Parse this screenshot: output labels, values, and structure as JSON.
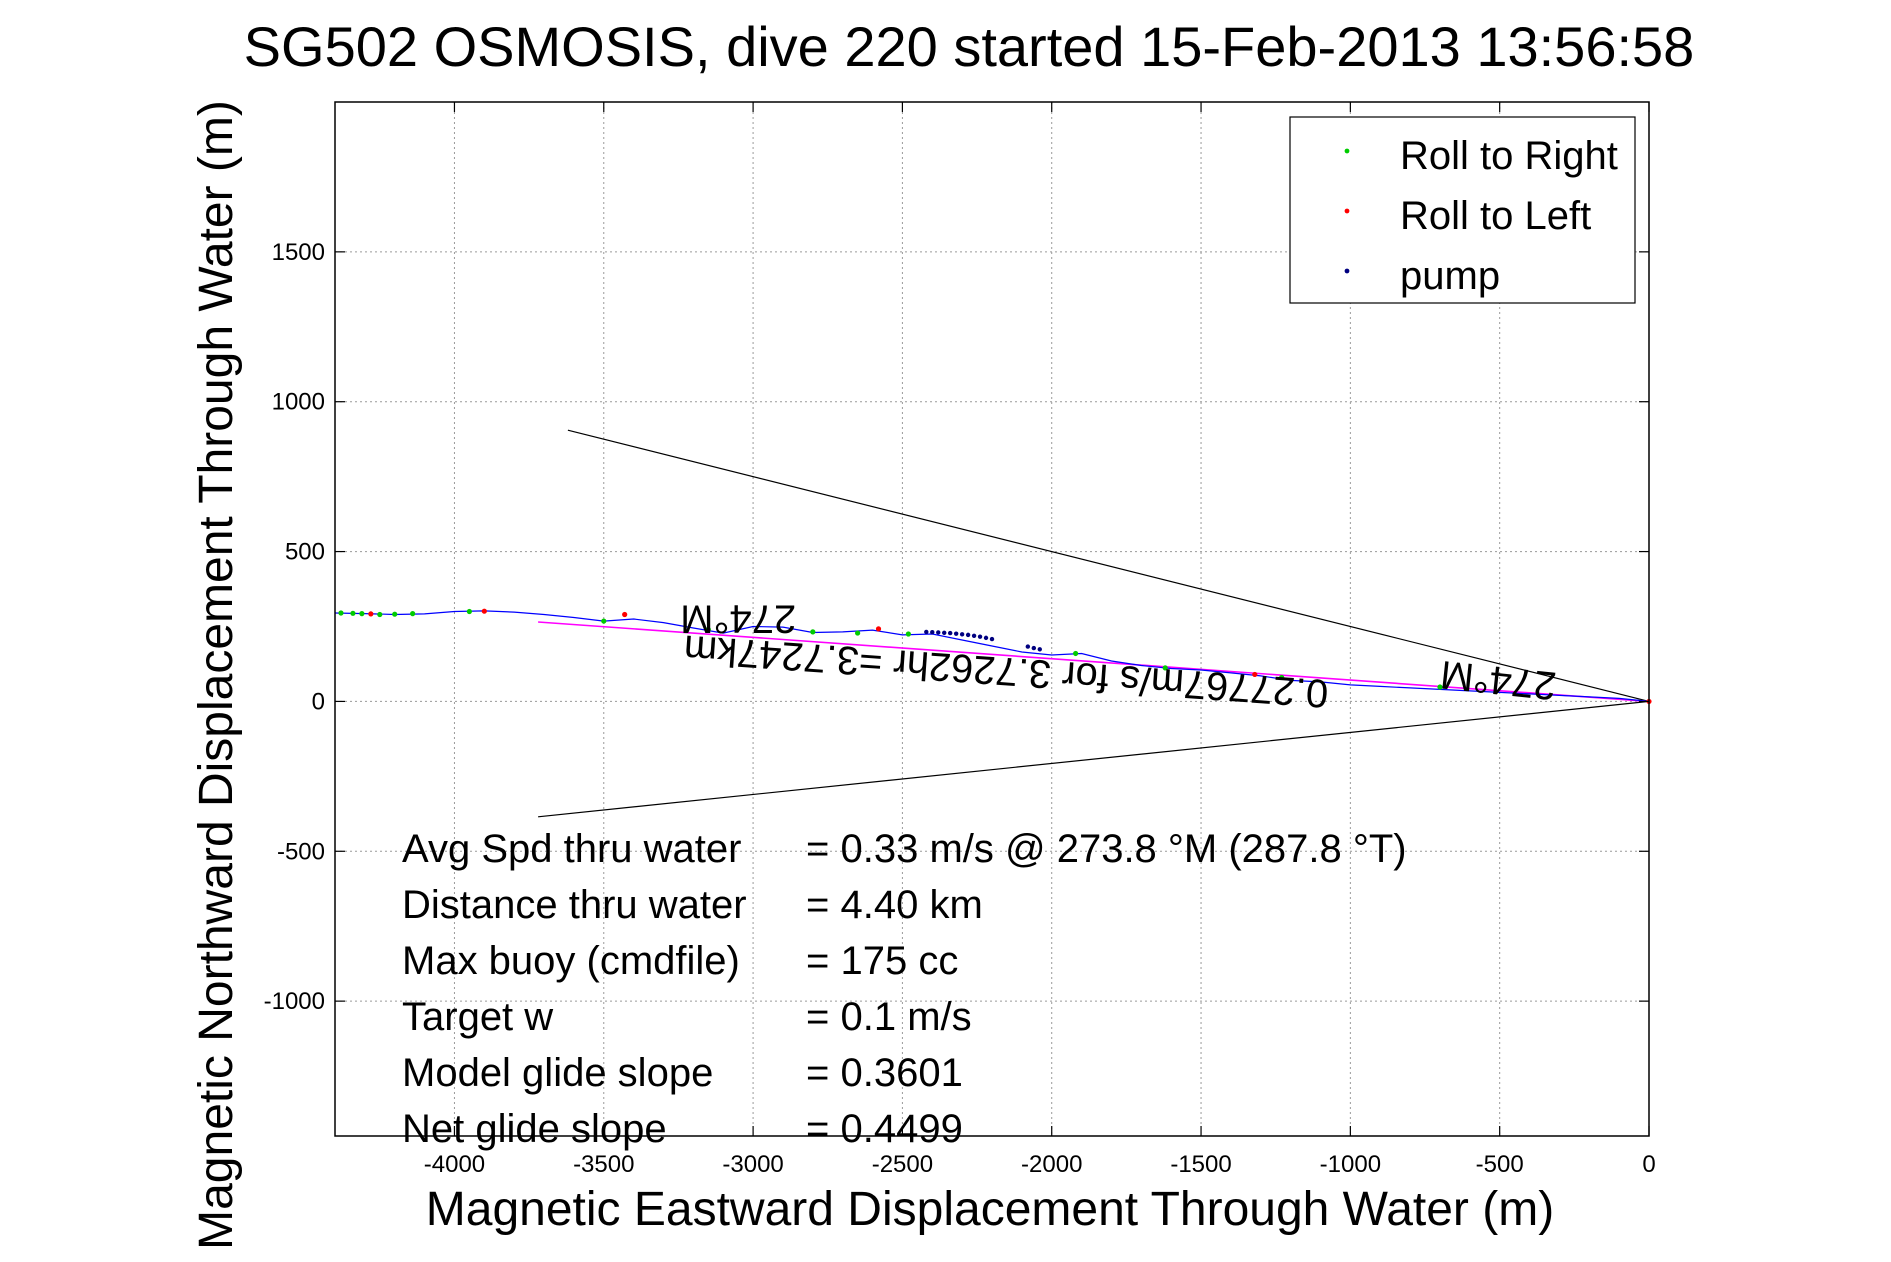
{
  "chart_data": {
    "type": "scatter",
    "title": "SG502 OSMOSIS, dive 220 started 15-Feb-2013 13:56:58",
    "xlabel": "Magnetic Eastward Displacement Through Water (m)",
    "ylabel": "Magnetic Northward Displacement Through Water (m)",
    "xlim": [
      -4400,
      0
    ],
    "ylim": [
      -1450,
      2000
    ],
    "xticks": [
      -4000,
      -3500,
      -3000,
      -2500,
      -2000,
      -1500,
      -1000,
      -500,
      0
    ],
    "yticks": [
      -1000,
      -500,
      0,
      500,
      1000,
      1500
    ],
    "xtick_labels": [
      "-4000",
      "-3500",
      "-3000",
      "-2500",
      "-2000",
      "-1500",
      "-1000",
      "-500",
      "0"
    ],
    "ytick_labels": [
      "-1000",
      "-500",
      "0",
      "500",
      "1000",
      "1500"
    ],
    "grid": true,
    "legend_position": "top-right",
    "legend": [
      {
        "label": "Roll to Right",
        "color": "#00cc00"
      },
      {
        "label": "Roll to Left",
        "color": "#ff0000"
      },
      {
        "label": "pump",
        "color": "#000080"
      }
    ],
    "track": {
      "color": "#0000ff",
      "x": [
        -4400,
        -4300,
        -4200,
        -4100,
        -4000,
        -3900,
        -3800,
        -3700,
        -3600,
        -3500,
        -3400,
        -3300,
        -3200,
        -3100,
        -3000,
        -2900,
        -2800,
        -2700,
        -2600,
        -2500,
        -2400,
        -2300,
        -2200,
        -2100,
        -2000,
        -1900,
        -1800,
        -1700,
        -1600,
        -1500,
        -1400,
        -1300,
        -1200,
        -1100,
        -1000,
        -900,
        -800,
        -700,
        -600,
        -500,
        -400,
        -300,
        -200,
        -100,
        0
      ],
      "y": [
        295,
        293,
        290,
        292,
        300,
        302,
        298,
        290,
        280,
        268,
        275,
        263,
        245,
        228,
        250,
        248,
        230,
        232,
        238,
        222,
        225,
        205,
        185,
        165,
        155,
        160,
        135,
        120,
        110,
        105,
        95,
        85,
        70,
        65,
        55,
        50,
        45,
        40,
        35,
        30,
        25,
        20,
        15,
        10,
        0
      ]
    },
    "roll_right": {
      "x": [
        -4380,
        -4340,
        -4310,
        -4250,
        -4200,
        -4140,
        -3950,
        -3500,
        -3150,
        -2800,
        -2650,
        -2480,
        -1920,
        -1620,
        -1230,
        -700
      ],
      "y": [
        295,
        294,
        293,
        290,
        291,
        293,
        300,
        268,
        240,
        232,
        228,
        225,
        160,
        112,
        80,
        48
      ]
    },
    "roll_left": {
      "x": [
        -4280,
        -3900,
        -3430,
        -2580,
        -1320,
        0
      ],
      "y": [
        292,
        301,
        290,
        242,
        90,
        0
      ]
    },
    "pump": {
      "x": [
        -2420,
        -2400,
        -2380,
        -2360,
        -2340,
        -2320,
        -2300,
        -2280,
        -2260,
        -2240,
        -2220,
        -2200,
        -2080,
        -2060,
        -2040
      ],
      "y": [
        232,
        231,
        230,
        229,
        228,
        226,
        224,
        222,
        219,
        216,
        212,
        208,
        183,
        178,
        174
      ]
    },
    "wedge_line_upper": {
      "x": [
        -3620,
        0
      ],
      "y": [
        905,
        0
      ]
    },
    "wedge_line_lower": {
      "x": [
        -3720,
        0
      ],
      "y": [
        -385,
        0
      ]
    },
    "course_line": {
      "color": "#ff00ff",
      "x": [
        -3720,
        0
      ],
      "y": [
        265,
        0
      ]
    },
    "annotations": [
      {
        "text": "274°M",
        "x": -3050,
        "y": 320,
        "rotation": 180,
        "size": 40
      },
      {
        "text": "274°M",
        "x": -500,
        "y": 115,
        "rotation": 186,
        "size": 40
      },
      {
        "text": "0.27767m/s for 3.7262hr =3.7247km",
        "x": -2150,
        "y": 145,
        "rotation": 184,
        "size": 38
      }
    ],
    "stats": [
      {
        "label": "Avg Spd thru water",
        "value": "=  0.33 m/s @ 273.8 °M (287.8 °T)"
      },
      {
        "label": "Distance thru water",
        "value": "=  4.40 km"
      },
      {
        "label": "Max buoy (cmdfile)",
        "value": "= 175 cc"
      },
      {
        "label": "Target w",
        "value": "= 0.1 m/s"
      },
      {
        "label": "Model glide slope",
        "value": "= 0.3601"
      },
      {
        "label": "Net glide slope",
        "value": "= 0.4499"
      }
    ]
  }
}
